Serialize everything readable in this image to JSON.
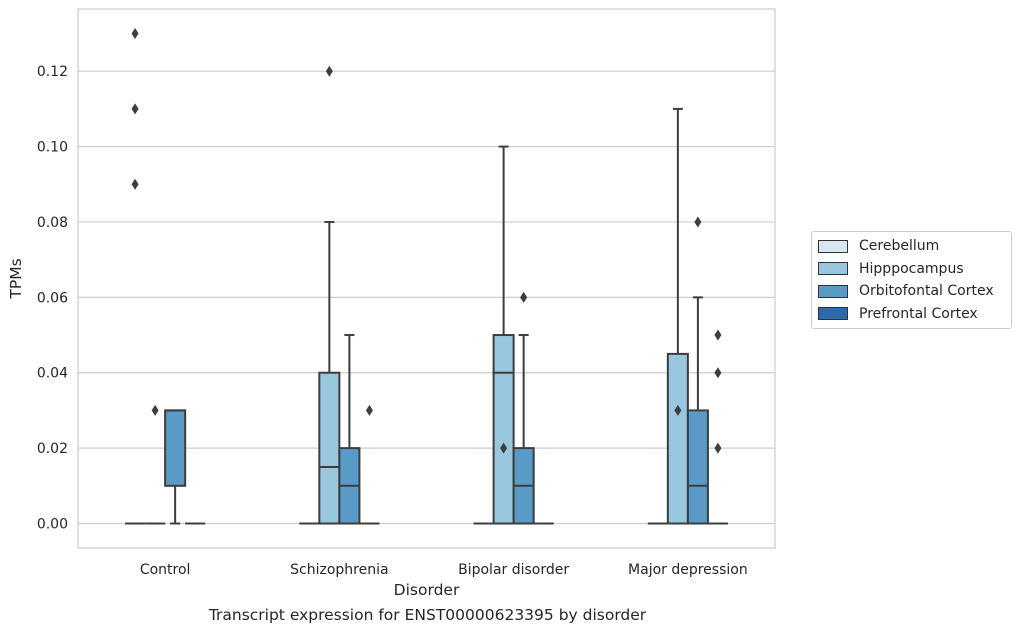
{
  "chart_data": {
    "type": "box",
    "xlabel": "Disorder",
    "ylabel": "TPMs",
    "caption": "Transcript expression for ENST00000623395 by disorder",
    "categories": [
      "Control",
      "Schizophrenia",
      "Bipolar disorder",
      "Major depression"
    ],
    "ylim": [
      -0.0065,
      0.1365
    ],
    "yticks": [
      0.0,
      0.02,
      0.04,
      0.06,
      0.08,
      0.1,
      0.12
    ],
    "ytick_labels": [
      "0.00",
      "0.02",
      "0.04",
      "0.06",
      "0.08",
      "0.10",
      "0.12"
    ],
    "grid": "horizontal",
    "legend_position": "right",
    "series": [
      {
        "name": "Cerebellum",
        "color": "#d6e6f3",
        "boxes": [
          {
            "q1": 0,
            "median": 0,
            "q3": 0,
            "whislo": 0,
            "whishi": 0,
            "fliers": [
              0.13,
              0.11,
              0.09
            ]
          },
          {
            "q1": 0,
            "median": 0,
            "q3": 0,
            "whislo": 0,
            "whishi": 0,
            "fliers": []
          },
          {
            "q1": 0,
            "median": 0,
            "q3": 0,
            "whislo": 0,
            "whishi": 0,
            "fliers": []
          },
          {
            "q1": 0,
            "median": 0,
            "q3": 0,
            "whislo": 0,
            "whishi": 0,
            "fliers": []
          }
        ]
      },
      {
        "name": "Hipppocampus",
        "color": "#9ac7e0",
        "boxes": [
          {
            "q1": 0,
            "median": 0,
            "q3": 0,
            "whislo": 0,
            "whishi": 0,
            "fliers": [
              0.03
            ]
          },
          {
            "q1": 0,
            "median": 0.015,
            "q3": 0.04,
            "whislo": 0,
            "whishi": 0.08,
            "fliers": [
              0.12
            ]
          },
          {
            "q1": 0,
            "median": 0.04,
            "q3": 0.05,
            "whislo": 0,
            "whishi": 0.1,
            "fliers": [
              0.02
            ]
          },
          {
            "q1": 0,
            "median": 0,
            "q3": 0.045,
            "whislo": 0,
            "whishi": 0.11,
            "fliers": [
              0.03
            ]
          }
        ]
      },
      {
        "name": "Orbitofontal Cortex",
        "color": "#5a9ac6",
        "boxes": [
          {
            "q1": 0.01,
            "median": 0.03,
            "q3": 0.03,
            "whislo": 0,
            "whishi": 0.03,
            "fliers": []
          },
          {
            "q1": 0,
            "median": 0.01,
            "q3": 0.02,
            "whislo": 0,
            "whishi": 0.05,
            "fliers": []
          },
          {
            "q1": 0,
            "median": 0.01,
            "q3": 0.02,
            "whislo": 0,
            "whishi": 0.05,
            "fliers": [
              0.06
            ]
          },
          {
            "q1": 0,
            "median": 0.01,
            "q3": 0.03,
            "whislo": 0,
            "whishi": 0.06,
            "fliers": [
              0.08
            ]
          }
        ]
      },
      {
        "name": "Prefrontal Cortex",
        "color": "#2c6ba7",
        "boxes": [
          {
            "q1": 0,
            "median": 0,
            "q3": 0,
            "whislo": 0,
            "whishi": 0,
            "fliers": []
          },
          {
            "q1": 0,
            "median": 0,
            "q3": 0,
            "whislo": 0,
            "whishi": 0,
            "fliers": [
              0.03
            ]
          },
          {
            "q1": 0,
            "median": 0,
            "q3": 0,
            "whislo": 0,
            "whishi": 0,
            "fliers": []
          },
          {
            "q1": 0,
            "median": 0,
            "q3": 0,
            "whislo": 0,
            "whishi": 0,
            "fliers": [
              0.05,
              0.04,
              0.02
            ]
          }
        ]
      }
    ]
  }
}
